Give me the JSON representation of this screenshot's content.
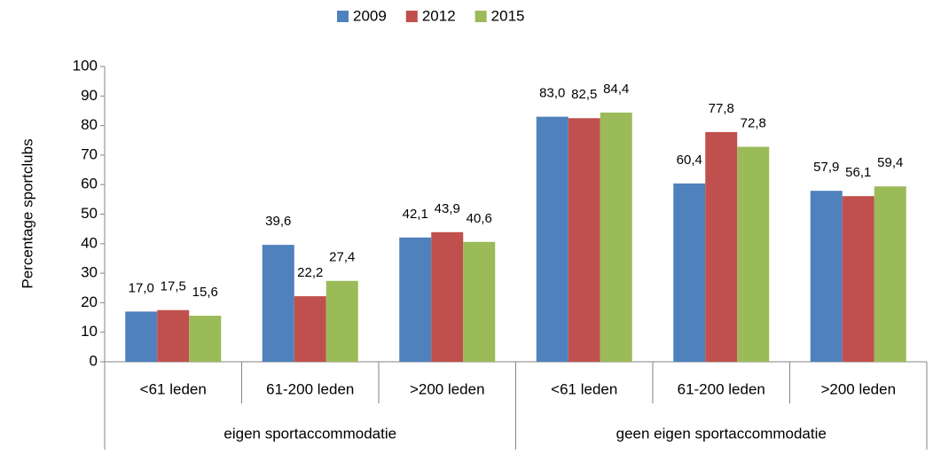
{
  "chart_data": {
    "type": "bar",
    "y_label": "Percentage sportclubs",
    "categories": [
      "<61 leden",
      "61-200 leden",
      ">200 leden",
      "<61 leden",
      "61-200 leden",
      ">200 leden"
    ],
    "groups": [
      "eigen sportaccommodatie",
      "geen eigen sportaccommodatie"
    ],
    "series": [
      {
        "name": "2009",
        "color": "#4f81bd",
        "values": [
          17.0,
          39.6,
          42.1,
          83.0,
          60.4,
          57.9
        ],
        "value_labels": [
          "17,0",
          "39,6",
          "42,1",
          "83,0",
          "60,4",
          "57,9"
        ]
      },
      {
        "name": "2012",
        "color": "#c0504d",
        "values": [
          17.5,
          22.2,
          43.9,
          82.5,
          77.8,
          56.1
        ],
        "value_labels": [
          "17,5",
          "22,2",
          "43,9",
          "82,5",
          "77,8",
          "56,1"
        ]
      },
      {
        "name": "2015",
        "color": "#9bbb59",
        "values": [
          15.6,
          27.4,
          40.6,
          84.4,
          72.8,
          59.4
        ],
        "value_labels": [
          "15,6",
          "27,4",
          "40,6",
          "84,4",
          "72,8",
          "59,4"
        ]
      }
    ],
    "ylim": [
      0,
      100
    ],
    "yticks": [
      0,
      10,
      20,
      30,
      40,
      50,
      60,
      70,
      80,
      90,
      100
    ],
    "grid": false,
    "legend": "top"
  }
}
